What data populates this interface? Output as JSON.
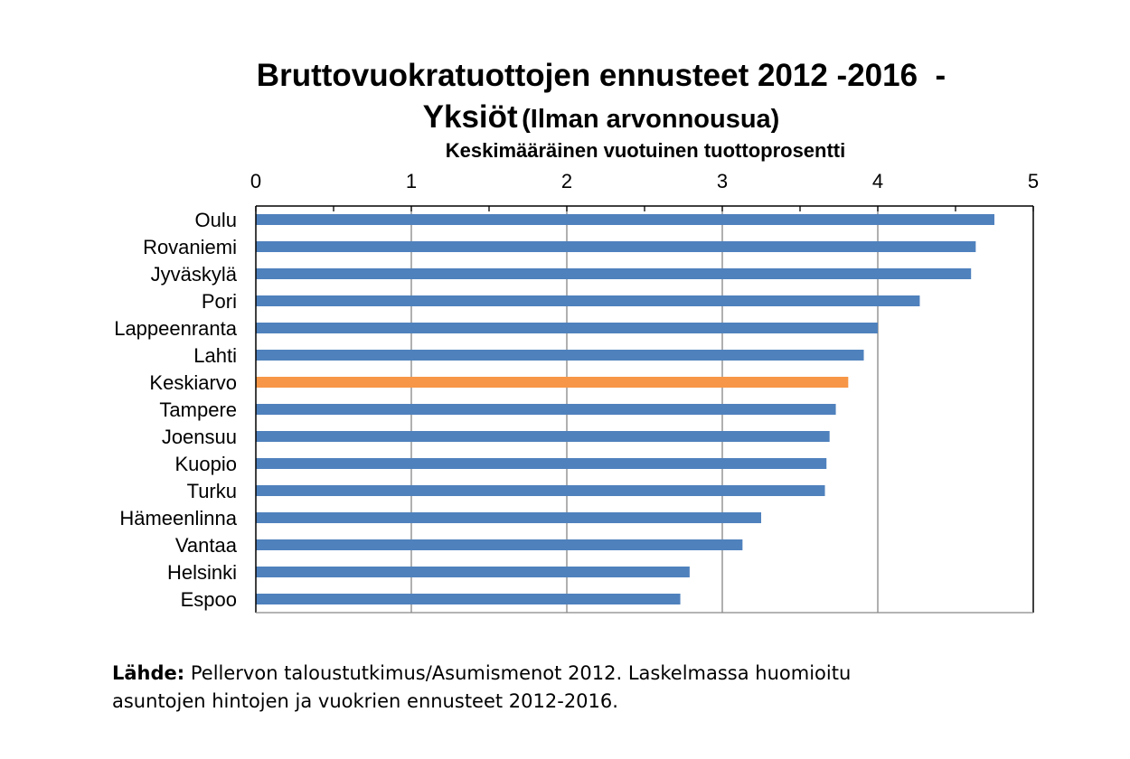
{
  "chart_data": {
    "type": "bar",
    "orientation": "horizontal",
    "title_line1": "Bruttovuokratuottojen ennusteet 2012 -2016  -",
    "title_line2_main": "Yksiöt",
    "title_line2_sub": "(Ilman arvonnousua)",
    "xlabel": "Keskimääräinen vuotuinen tuottoprosentti",
    "xlim": [
      0,
      5
    ],
    "xticks": [
      "0",
      "1",
      "2",
      "3",
      "4",
      "5"
    ],
    "x_axis_position": "top",
    "grid": true,
    "categories": [
      "Oulu",
      "Rovaniemi",
      "Jyväskylä",
      "Pori",
      "Lappeenranta",
      "Lahti",
      "Keskiarvo",
      "Tampere",
      "Joensuu",
      "Kuopio",
      "Turku",
      "Hämeenlinna",
      "Vantaa",
      "Helsinki",
      "Espoo"
    ],
    "values": [
      4.75,
      4.63,
      4.6,
      4.27,
      4.0,
      3.91,
      3.81,
      3.73,
      3.69,
      3.67,
      3.66,
      3.25,
      3.13,
      2.79,
      2.73
    ],
    "highlight_category": "Keskiarvo",
    "colors": {
      "bar": "#4f81bd",
      "highlight": "#f79646",
      "grid": "#868686"
    }
  },
  "source": {
    "label": "Lähde:",
    "line1": " Pellervon taloustutkimus/Asumismenot 2012. Laskelmassa huomioitu",
    "line2": "asuntojen hintojen ja vuokrien ennusteet 2012-2016."
  }
}
